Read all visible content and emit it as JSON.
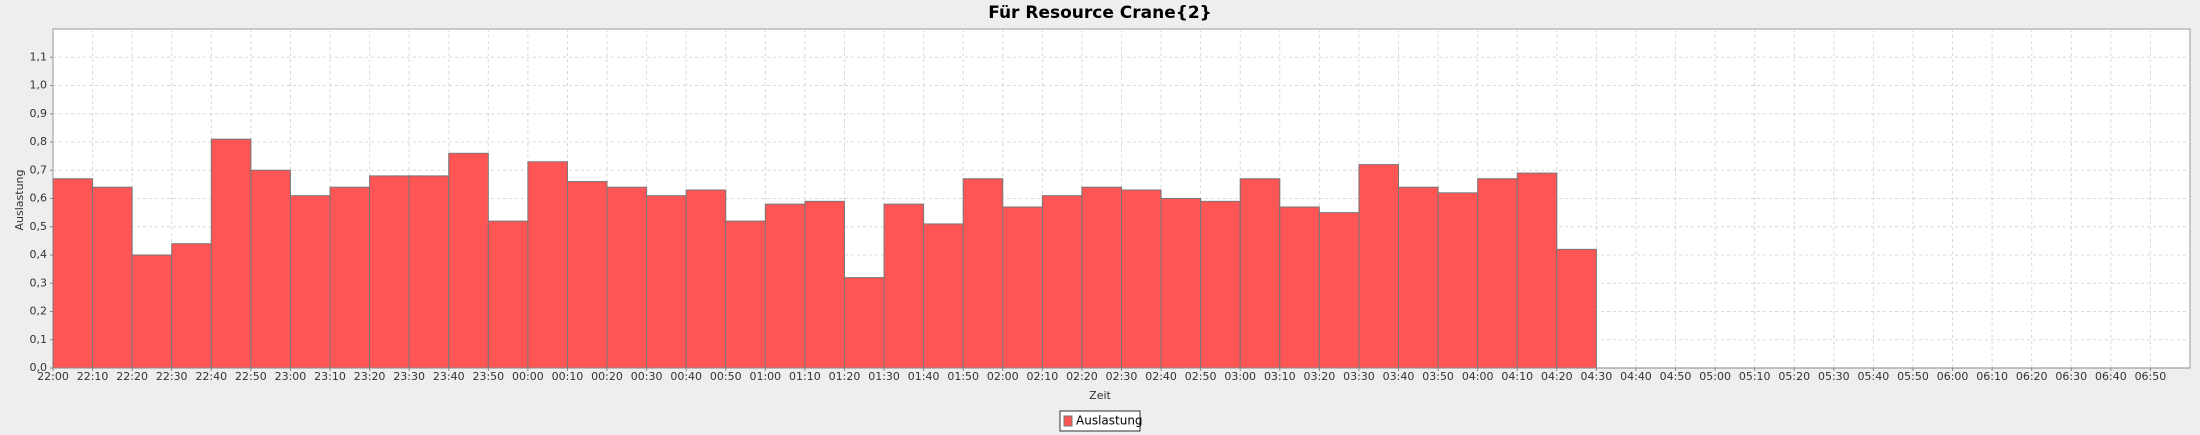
{
  "chart_data": {
    "type": "bar",
    "title": "Für Resource Crane{2}",
    "xlabel": "Zeit",
    "ylabel": "Auslastung",
    "categories": [
      "22:00",
      "22:10",
      "22:20",
      "22:30",
      "22:40",
      "22:50",
      "23:00",
      "23:10",
      "23:20",
      "23:30",
      "23:40",
      "23:50",
      "00:00",
      "00:10",
      "00:20",
      "00:30",
      "00:40",
      "00:50",
      "01:00",
      "01:10",
      "01:20",
      "01:30",
      "01:40",
      "01:50",
      "02:00",
      "02:10",
      "02:20",
      "02:30",
      "02:40",
      "02:50",
      "03:00",
      "03:10",
      "03:20",
      "03:30",
      "03:40",
      "03:50",
      "04:00",
      "04:10",
      "04:20",
      "04:30",
      "04:40",
      "04:50",
      "05:00",
      "05:10",
      "05:20",
      "05:30",
      "05:40",
      "05:50",
      "06:00",
      "06:10",
      "06:20",
      "06:30",
      "06:40",
      "06:50"
    ],
    "series": [
      {
        "name": "Auslastung",
        "color": "#ff5555",
        "values": [
          0.67,
          0.64,
          0.4,
          0.44,
          0.81,
          0.7,
          0.61,
          0.64,
          0.68,
          0.68,
          0.76,
          0.52,
          0.73,
          0.66,
          0.64,
          0.61,
          0.63,
          0.52,
          0.58,
          0.59,
          0.32,
          0.58,
          0.51,
          0.67,
          0.57,
          0.61,
          0.64,
          0.63,
          0.6,
          0.59,
          0.67,
          0.57,
          0.55,
          0.72,
          0.64,
          0.62,
          0.67,
          0.69,
          0.42,
          null,
          null,
          null,
          null,
          null,
          null,
          null,
          null,
          null,
          null,
          null,
          null,
          null,
          null,
          null
        ]
      }
    ],
    "ylim": [
      0,
      1.2
    ],
    "yticks": [
      {
        "value": 0,
        "label": "0,0"
      },
      {
        "value": 0.1,
        "label": "0,1"
      },
      {
        "value": 0.2,
        "label": "0,2"
      },
      {
        "value": 0.3,
        "label": "0,3"
      },
      {
        "value": 0.4,
        "label": "0,4"
      },
      {
        "value": 0.5,
        "label": "0,5"
      },
      {
        "value": 0.6,
        "label": "0,6"
      },
      {
        "value": 0.7,
        "label": "0,7"
      },
      {
        "value": 0.8,
        "label": "0,8"
      },
      {
        "value": 0.9,
        "label": "0,9"
      },
      {
        "value": 1.0,
        "label": "1,0"
      },
      {
        "value": 1.1,
        "label": "1,1"
      }
    ],
    "grid": true,
    "legend": "bottom"
  }
}
